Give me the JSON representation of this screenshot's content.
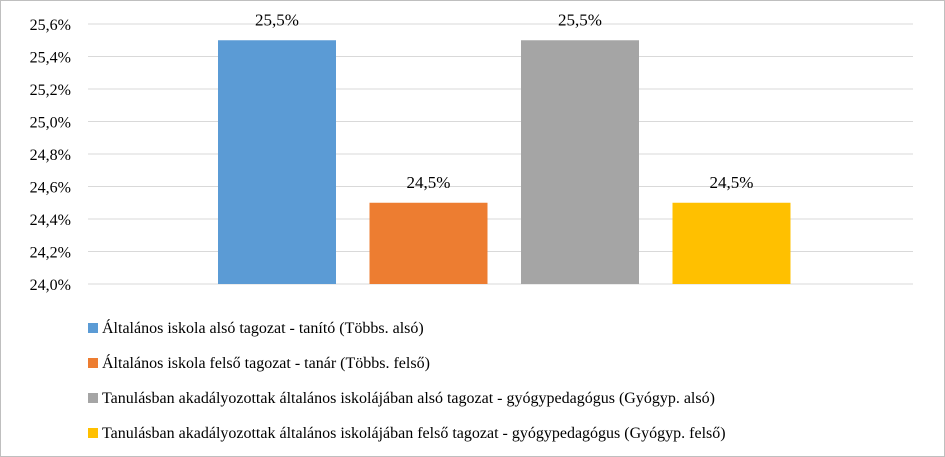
{
  "chart_data": {
    "type": "bar",
    "title": "",
    "xlabel": "",
    "ylabel": "",
    "ylim": [
      24.0,
      25.6
    ],
    "y_ticks": [
      "24,0%",
      "24,2%",
      "24,4%",
      "24,6%",
      "24,8%",
      "25,0%",
      "25,2%",
      "25,4%",
      "25,6%"
    ],
    "y_tick_values": [
      24.0,
      24.2,
      24.4,
      24.6,
      24.8,
      25.0,
      25.2,
      25.4,
      25.6
    ],
    "grid": true,
    "legend_position": "bottom",
    "series": [
      {
        "name": "Általános iskola alsó tagozat - tanító (Többs. alsó)",
        "value": 25.5,
        "label": "25,5%",
        "color": "#5b9bd5"
      },
      {
        "name": "Általános iskola felső tagozat - tanár (Többs. felső)",
        "value": 24.5,
        "label": "24,5%",
        "color": "#ed7d31"
      },
      {
        "name": "Tanulásban akadályozottak általános iskolájában alsó tagozat - gyógypedagógus (Gyógyp. alsó)",
        "value": 25.5,
        "label": "25,5%",
        "color": "#a5a5a5"
      },
      {
        "name": "Tanulásban akadályozottak általános iskolájában felső tagozat - gyógypedagógus (Gyógyp. felső)",
        "value": 24.5,
        "label": "24,5%",
        "color": "#ffc000"
      }
    ]
  }
}
